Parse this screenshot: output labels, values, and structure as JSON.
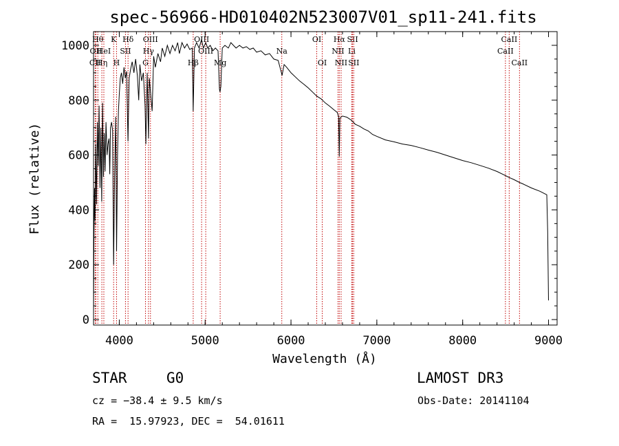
{
  "chart_data": {
    "type": "line",
    "title": "spec-56966-HD010402N523007V01_sp11-241.fits",
    "xlabel": "Wavelength (Å)",
    "ylabel": "Flux (relative)",
    "xlim": [
      3700,
      9100
    ],
    "ylim": [
      -20,
      1050
    ],
    "xticks": [
      4000,
      5000,
      6000,
      7000,
      8000,
      9000
    ],
    "yticks": [
      0,
      200,
      400,
      600,
      800,
      1000
    ],
    "series": [
      {
        "name": "flux",
        "points": [
          [
            3700,
            20
          ],
          [
            3705,
            300
          ],
          [
            3712,
            480
          ],
          [
            3718,
            360
          ],
          [
            3725,
            640
          ],
          [
            3735,
            420
          ],
          [
            3745,
            720
          ],
          [
            3755,
            560
          ],
          [
            3765,
            780
          ],
          [
            3775,
            480
          ],
          [
            3785,
            700
          ],
          [
            3795,
            430
          ],
          [
            3805,
            790
          ],
          [
            3815,
            520
          ],
          [
            3825,
            680
          ],
          [
            3835,
            540
          ],
          [
            3845,
            720
          ],
          [
            3858,
            600
          ],
          [
            3868,
            640
          ],
          [
            3880,
            660
          ],
          [
            3889,
            530
          ],
          [
            3898,
            700
          ],
          [
            3910,
            720
          ],
          [
            3922,
            690
          ],
          [
            3934,
            200
          ],
          [
            3945,
            520
          ],
          [
            3958,
            740
          ],
          [
            3968,
            250
          ],
          [
            3980,
            600
          ],
          [
            3990,
            760
          ],
          [
            4000,
            820
          ],
          [
            4012,
            880
          ],
          [
            4025,
            900
          ],
          [
            4040,
            860
          ],
          [
            4055,
            920
          ],
          [
            4070,
            880
          ],
          [
            4085,
            905
          ],
          [
            4101,
            650
          ],
          [
            4115,
            880
          ],
          [
            4130,
            910
          ],
          [
            4150,
            940
          ],
          [
            4170,
            900
          ],
          [
            4190,
            950
          ],
          [
            4210,
            890
          ],
          [
            4226,
            800
          ],
          [
            4240,
            930
          ],
          [
            4260,
            870
          ],
          [
            4280,
            900
          ],
          [
            4300,
            780
          ],
          [
            4310,
            640
          ],
          [
            4325,
            900
          ],
          [
            4340,
            660
          ],
          [
            4350,
            880
          ],
          [
            4383,
            760
          ],
          [
            4400,
            960
          ],
          [
            4420,
            920
          ],
          [
            4450,
            970
          ],
          [
            4480,
            940
          ],
          [
            4500,
            990
          ],
          [
            4530,
            960
          ],
          [
            4560,
            1000
          ],
          [
            4590,
            970
          ],
          [
            4620,
            1000
          ],
          [
            4650,
            980
          ],
          [
            4680,
            1010
          ],
          [
            4700,
            970
          ],
          [
            4730,
            1010
          ],
          [
            4760,
            990
          ],
          [
            4790,
            1005
          ],
          [
            4820,
            985
          ],
          [
            4850,
            990
          ],
          [
            4861,
            760
          ],
          [
            4875,
            990
          ],
          [
            4900,
            1010
          ],
          [
            4930,
            990
          ],
          [
            4957,
            1020
          ],
          [
            4980,
            990
          ],
          [
            5007,
            1010
          ],
          [
            5030,
            990
          ],
          [
            5060,
            1000
          ],
          [
            5090,
            980
          ],
          [
            5120,
            990
          ],
          [
            5150,
            980
          ],
          [
            5167,
            840
          ],
          [
            5173,
            830
          ],
          [
            5183,
            850
          ],
          [
            5200,
            990
          ],
          [
            5230,
            1000
          ],
          [
            5270,
            990
          ],
          [
            5300,
            1010
          ],
          [
            5330,
            1000
          ],
          [
            5360,
            990
          ],
          [
            5400,
            1000
          ],
          [
            5440,
            990
          ],
          [
            5480,
            995
          ],
          [
            5520,
            985
          ],
          [
            5560,
            990
          ],
          [
            5600,
            975
          ],
          [
            5650,
            980
          ],
          [
            5700,
            965
          ],
          [
            5750,
            970
          ],
          [
            5800,
            950
          ],
          [
            5850,
            945
          ],
          [
            5889,
            900
          ],
          [
            5896,
            890
          ],
          [
            5920,
            930
          ],
          [
            5950,
            920
          ],
          [
            6000,
            900
          ],
          [
            6050,
            885
          ],
          [
            6100,
            870
          ],
          [
            6150,
            858
          ],
          [
            6200,
            845
          ],
          [
            6250,
            830
          ],
          [
            6300,
            815
          ],
          [
            6350,
            805
          ],
          [
            6400,
            790
          ],
          [
            6450,
            778
          ],
          [
            6500,
            765
          ],
          [
            6540,
            755
          ],
          [
            6555,
            740
          ],
          [
            6563,
            595
          ],
          [
            6570,
            735
          ],
          [
            6600,
            742
          ],
          [
            6650,
            738
          ],
          [
            6700,
            728
          ],
          [
            6750,
            712
          ],
          [
            6800,
            705
          ],
          [
            6850,
            695
          ],
          [
            6900,
            688
          ],
          [
            6950,
            675
          ],
          [
            7000,
            668
          ],
          [
            7100,
            655
          ],
          [
            7200,
            648
          ],
          [
            7300,
            640
          ],
          [
            7400,
            635
          ],
          [
            7500,
            627
          ],
          [
            7600,
            618
          ],
          [
            7700,
            610
          ],
          [
            7800,
            600
          ],
          [
            7900,
            590
          ],
          [
            8000,
            580
          ],
          [
            8100,
            572
          ],
          [
            8200,
            562
          ],
          [
            8300,
            552
          ],
          [
            8400,
            540
          ],
          [
            8498,
            525
          ],
          [
            8542,
            518
          ],
          [
            8600,
            510
          ],
          [
            8662,
            500
          ],
          [
            8700,
            495
          ],
          [
            8800,
            480
          ],
          [
            8900,
            468
          ],
          [
            8980,
            455
          ],
          [
            8990,
            320
          ],
          [
            9000,
            70
          ]
        ]
      }
    ],
    "annotations": [
      {
        "label": "CII",
        "wavelength": 3719,
        "row": 3
      },
      {
        "label": "OII",
        "wavelength": 3727,
        "row": 2
      },
      {
        "label": "Hθ",
        "wavelength": 3750,
        "row": 1
      },
      {
        "label": "Hη",
        "wavelength": 3797,
        "row": 3
      },
      {
        "label": "HeI",
        "wavelength": 3820,
        "row": 2
      },
      {
        "label": "K",
        "wavelength": 3934,
        "row": 1
      },
      {
        "label": "SII",
        "wavelength": 4072,
        "row": 2
      },
      {
        "label": "H",
        "wavelength": 3968,
        "row": 3
      },
      {
        "label": "Hδ",
        "wavelength": 4102,
        "row": 1
      },
      {
        "label": "G",
        "wavelength": 4305,
        "row": 3
      },
      {
        "label": "Hγ",
        "wavelength": 4340,
        "row": 2
      },
      {
        "label": "OIII",
        "wavelength": 4363,
        "row": 1
      },
      {
        "label": "Hβ",
        "wavelength": 4861,
        "row": 3
      },
      {
        "label": "OIII",
        "wavelength": 4959,
        "row": 1
      },
      {
        "label": "OIII",
        "wavelength": 5007,
        "row": 2
      },
      {
        "label": "Mg",
        "wavelength": 5175,
        "row": 3
      },
      {
        "label": "Na",
        "wavelength": 5893,
        "row": 2
      },
      {
        "label": "OI",
        "wavelength": 6300,
        "row": 1
      },
      {
        "label": "OI",
        "wavelength": 6364,
        "row": 3
      },
      {
        "label": "Hα",
        "wavelength": 6563,
        "row": 1
      },
      {
        "label": "NII",
        "wavelength": 6548,
        "row": 2
      },
      {
        "label": "NII",
        "wavelength": 6584,
        "row": 3
      },
      {
        "label": "SII",
        "wavelength": 6717,
        "row": 1
      },
      {
        "label": "Li",
        "wavelength": 6708,
        "row": 2
      },
      {
        "label": "SII",
        "wavelength": 6731,
        "row": 3
      },
      {
        "label": "CaII",
        "wavelength": 8542,
        "row": 1
      },
      {
        "label": "CaII",
        "wavelength": 8498,
        "row": 2
      },
      {
        "label": "CaII",
        "wavelength": 8662,
        "row": 3
      }
    ]
  },
  "info": {
    "object_class": "STAR",
    "subclass": "G0",
    "survey": "LAMOST DR3",
    "cz": "cz = −38.4 ± 9.5 km/s",
    "obs_date": "Obs-Date: 20141104",
    "coords": "RA =  15.97923, DEC =  54.01611"
  },
  "colors": {
    "axis": "#000000",
    "spectrum": "#000000",
    "line_markers": "#c00000",
    "background": "#ffffff"
  }
}
